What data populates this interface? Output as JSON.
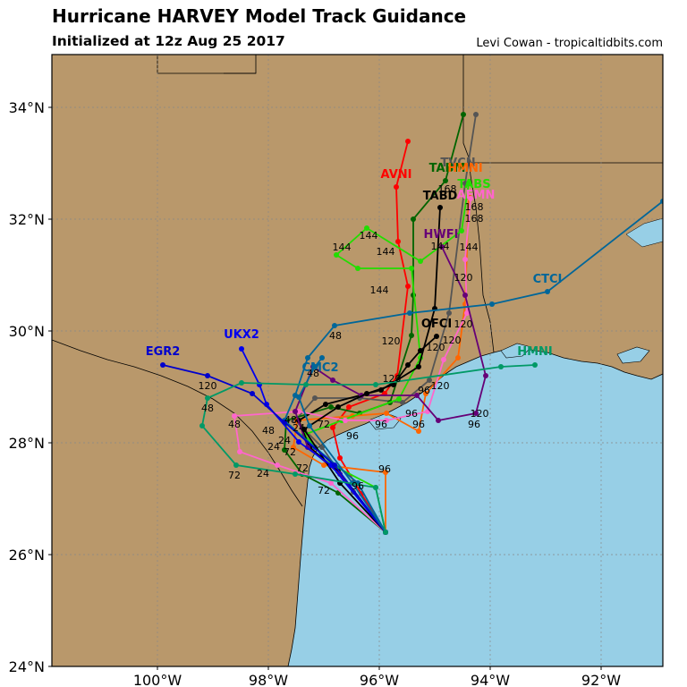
{
  "header": {
    "title": "Hurricane HARVEY Model Track Guidance",
    "subtitle": "Initialized at 12z Aug 25 2017",
    "credit": "Levi Cowan - tropicaltidbits.com"
  },
  "axes": {
    "x_ticks": [
      "100°W",
      "98°W",
      "96°W",
      "94°W",
      "92°W"
    ],
    "y_ticks": [
      "34°N",
      "32°N",
      "30°N",
      "28°N",
      "26°N",
      "24°N"
    ]
  },
  "colors": {
    "land": "#b9986b",
    "water": "#97cfe6",
    "grid": "#888888"
  },
  "models": [
    {
      "name": "AVNI",
      "color": "#ff0000"
    },
    {
      "name": "TVCN",
      "color": "#555555"
    },
    {
      "name": "TABM",
      "color": "#006400"
    },
    {
      "name": "HMNI",
      "color": "#ff6600"
    },
    {
      "name": "TABS",
      "color": "#22dd00"
    },
    {
      "name": "TABD",
      "color": "#000000"
    },
    {
      "name": "AEMN",
      "color": "#ff66cc"
    },
    {
      "name": "HWFI",
      "color": "#660077"
    },
    {
      "name": "CTCI",
      "color": "#006699"
    },
    {
      "name": "OFCI",
      "color": "#000000"
    },
    {
      "name": "UKX2",
      "color": "#0000ee"
    },
    {
      "name": "EGR2",
      "color": "#0000cc"
    },
    {
      "name": "CMC2",
      "color": "#006699"
    },
    {
      "name": "HMNI",
      "color": "#009966"
    }
  ],
  "hour_labels": [
    "168",
    "168",
    "168",
    "144",
    "144",
    "144",
    "144",
    "144",
    "144",
    "120",
    "120",
    "120",
    "120",
    "120",
    "120",
    "120",
    "120",
    "120",
    "96",
    "96",
    "96",
    "96",
    "96",
    "96",
    "96",
    "96",
    "72",
    "72",
    "72",
    "72",
    "72",
    "48",
    "48",
    "48",
    "48",
    "48",
    "48",
    "24",
    "24",
    "24",
    "24"
  ]
}
